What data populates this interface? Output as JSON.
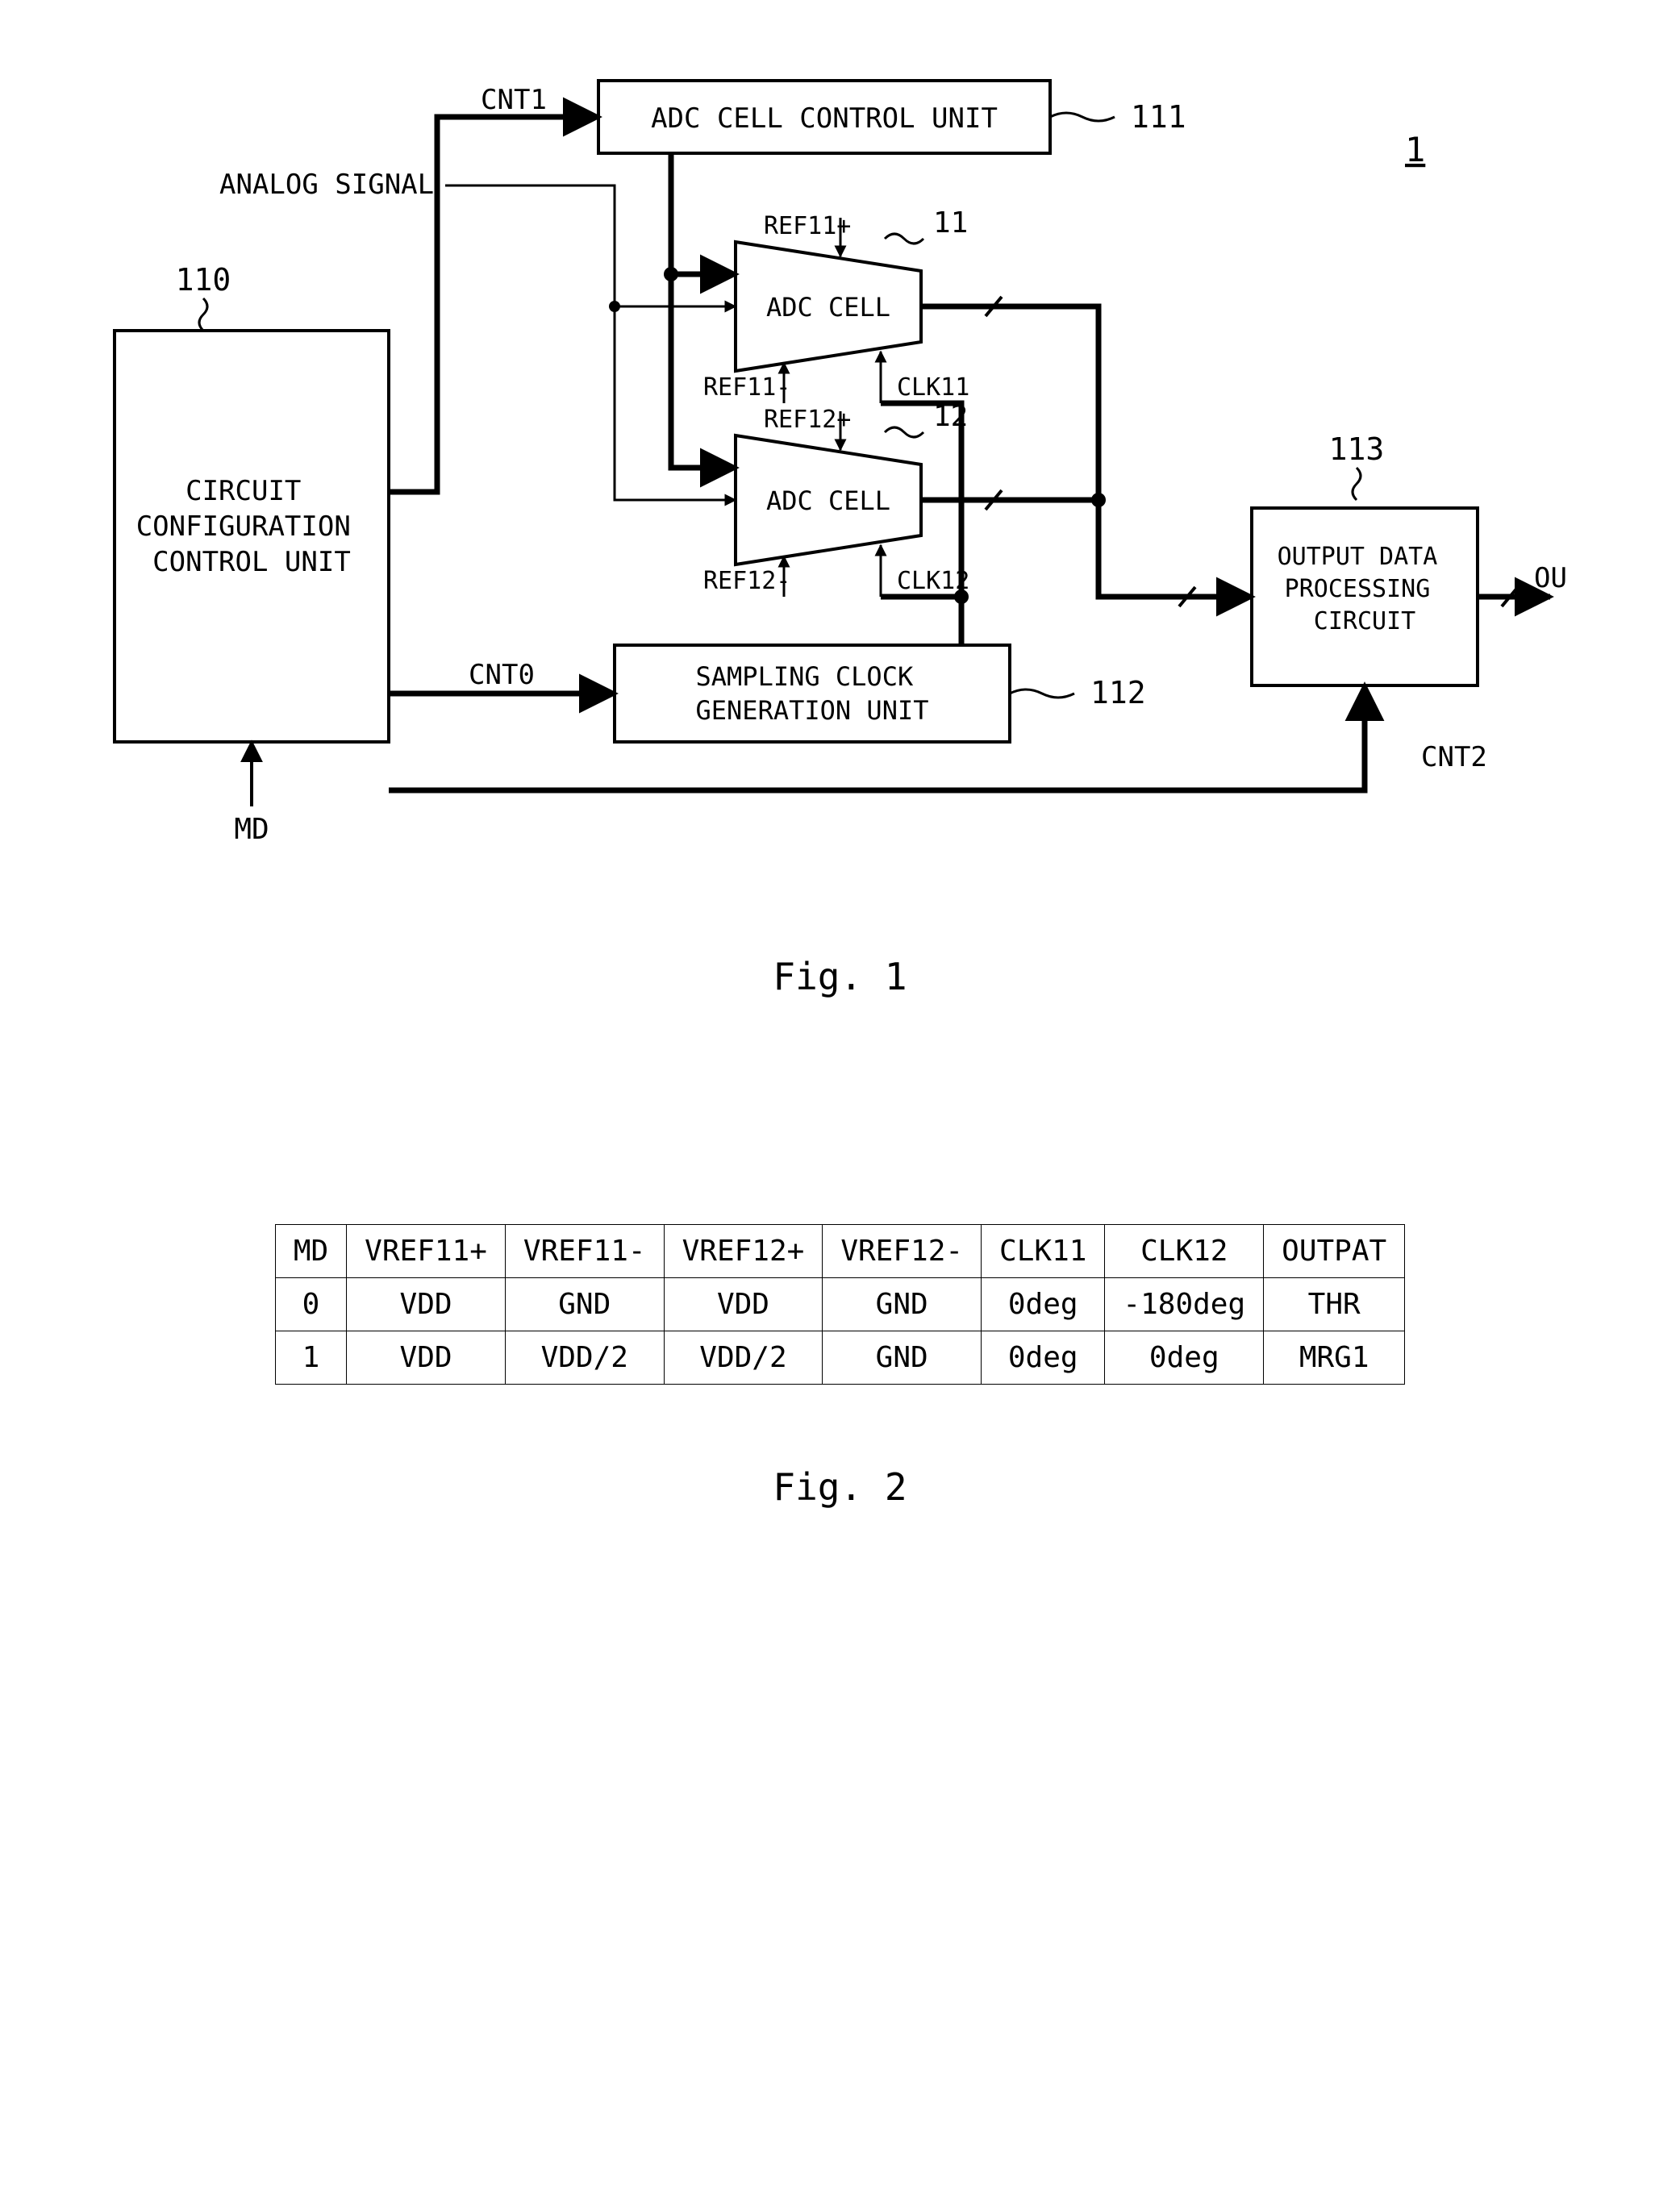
{
  "fig1": {
    "label": "Fig. 1",
    "system_ref": "1",
    "signals": {
      "analog": "ANALOG SIGNAL",
      "cnt1": "CNT1",
      "cnt0": "CNT0",
      "cnt2": "CNT2",
      "md": "MD",
      "out": "OUT",
      "ref11p": "REF11+",
      "ref11m": "REF11-",
      "ref12p": "REF12+",
      "ref12m": "REF12-",
      "clk11": "CLK11",
      "clk12": "CLK12"
    },
    "blocks": {
      "ccu": {
        "name": "CIRCUIT\nCONFIGURATION\nCONTROL UNIT",
        "ref": "110"
      },
      "accu": {
        "name": "ADC CELL CONTROL UNIT",
        "ref": "111"
      },
      "cell11": {
        "name": "ADC CELL",
        "ref": "11"
      },
      "cell12": {
        "name": "ADC CELL",
        "ref": "12"
      },
      "scg": {
        "name": "SAMPLING CLOCK\nGENERATION UNIT",
        "ref": "112"
      },
      "odp": {
        "name": "OUTPUT DATA\nPROCESSING\nCIRCUIT",
        "ref": "113"
      }
    },
    "style": {
      "stroke_thin": 3,
      "stroke_thick": 7,
      "font_block": 34,
      "font_signal": 34,
      "font_ref": 38,
      "font_fig": 46,
      "trapezoid_stroke": 4
    }
  },
  "fig2": {
    "label": "Fig. 2",
    "columns": [
      "MD",
      "VREF11+",
      "VREF11-",
      "VREF12+",
      "VREF12-",
      "CLK11",
      "CLK12",
      "OUTPAT"
    ],
    "rows": [
      [
        "0",
        "VDD",
        "GND",
        "VDD",
        "GND",
        "0deg",
        "-180deg",
        "THR"
      ],
      [
        "1",
        "VDD",
        "VDD/2",
        "VDD/2",
        "GND",
        "0deg",
        "0deg",
        "MRG1"
      ]
    ],
    "style": {
      "font_size": 36,
      "cell_pad_v": 12,
      "cell_pad_h": 22,
      "font_fig": 46
    }
  }
}
